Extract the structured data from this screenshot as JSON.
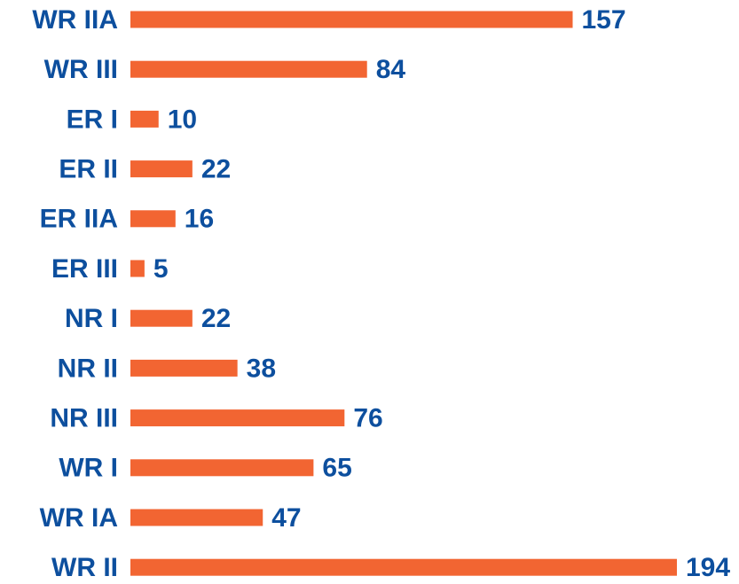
{
  "chart_data": {
    "type": "bar",
    "orientation": "horizontal",
    "categories": [
      "WR IIA",
      "WR III",
      "ER I",
      "ER II",
      "ER IIA",
      "ER III",
      "NR I",
      "NR II",
      "NR III",
      "WR I",
      "WR IA",
      "WR II"
    ],
    "values": [
      157,
      84,
      10,
      22,
      16,
      5,
      22,
      38,
      76,
      65,
      47,
      194
    ],
    "color": "#f26532"
  }
}
